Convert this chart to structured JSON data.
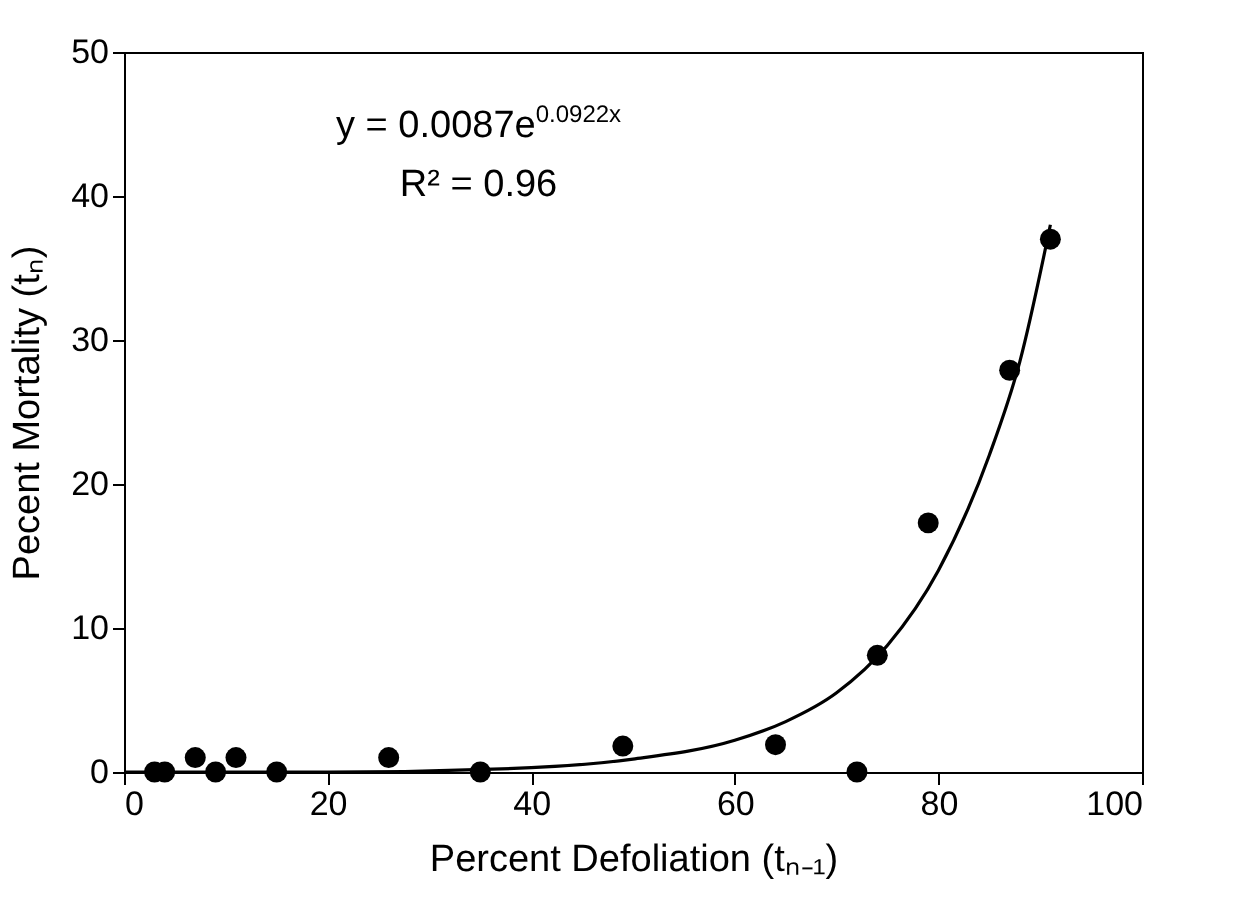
{
  "chart_data": {
    "type": "scatter",
    "xlabel": "Percent Defoliation (tₙ₋₁)",
    "ylabel": "Pecent Mortality (tₙ)",
    "annotations": [
      "y = 0.0087e$^{0.0922x}$",
      "R² = 0.96"
    ],
    "series": [
      {
        "color": "#000000",
        "marker": "circle",
        "x": [
          3,
          4,
          7,
          9,
          11,
          15,
          26,
          35,
          49,
          64,
          72,
          74,
          79,
          87,
          91
        ],
        "values": [
          0,
          0,
          1,
          0,
          1,
          0,
          1,
          0,
          1.8,
          1.9,
          0,
          8.1,
          17.3,
          27.9,
          37
        ]
      },
      {
        "type": "line",
        "color": "#000000",
        "marker": "none",
        "x": [
          0,
          20,
          40,
          50,
          60,
          65,
          70,
          75,
          80,
          85,
          88,
          91
        ],
        "values": [
          0,
          0,
          0.3,
          0.9,
          2.2,
          3.5,
          5.5,
          8.8,
          14,
          22,
          28.5,
          38
        ]
      }
    ],
    "xlim": [
      0,
      100
    ],
    "xticks": [
      0,
      20,
      40,
      60,
      80,
      100
    ],
    "ylim": [
      0,
      50
    ],
    "yticks": [
      0,
      10,
      20,
      30,
      40,
      50
    ],
    "grid": false
  }
}
